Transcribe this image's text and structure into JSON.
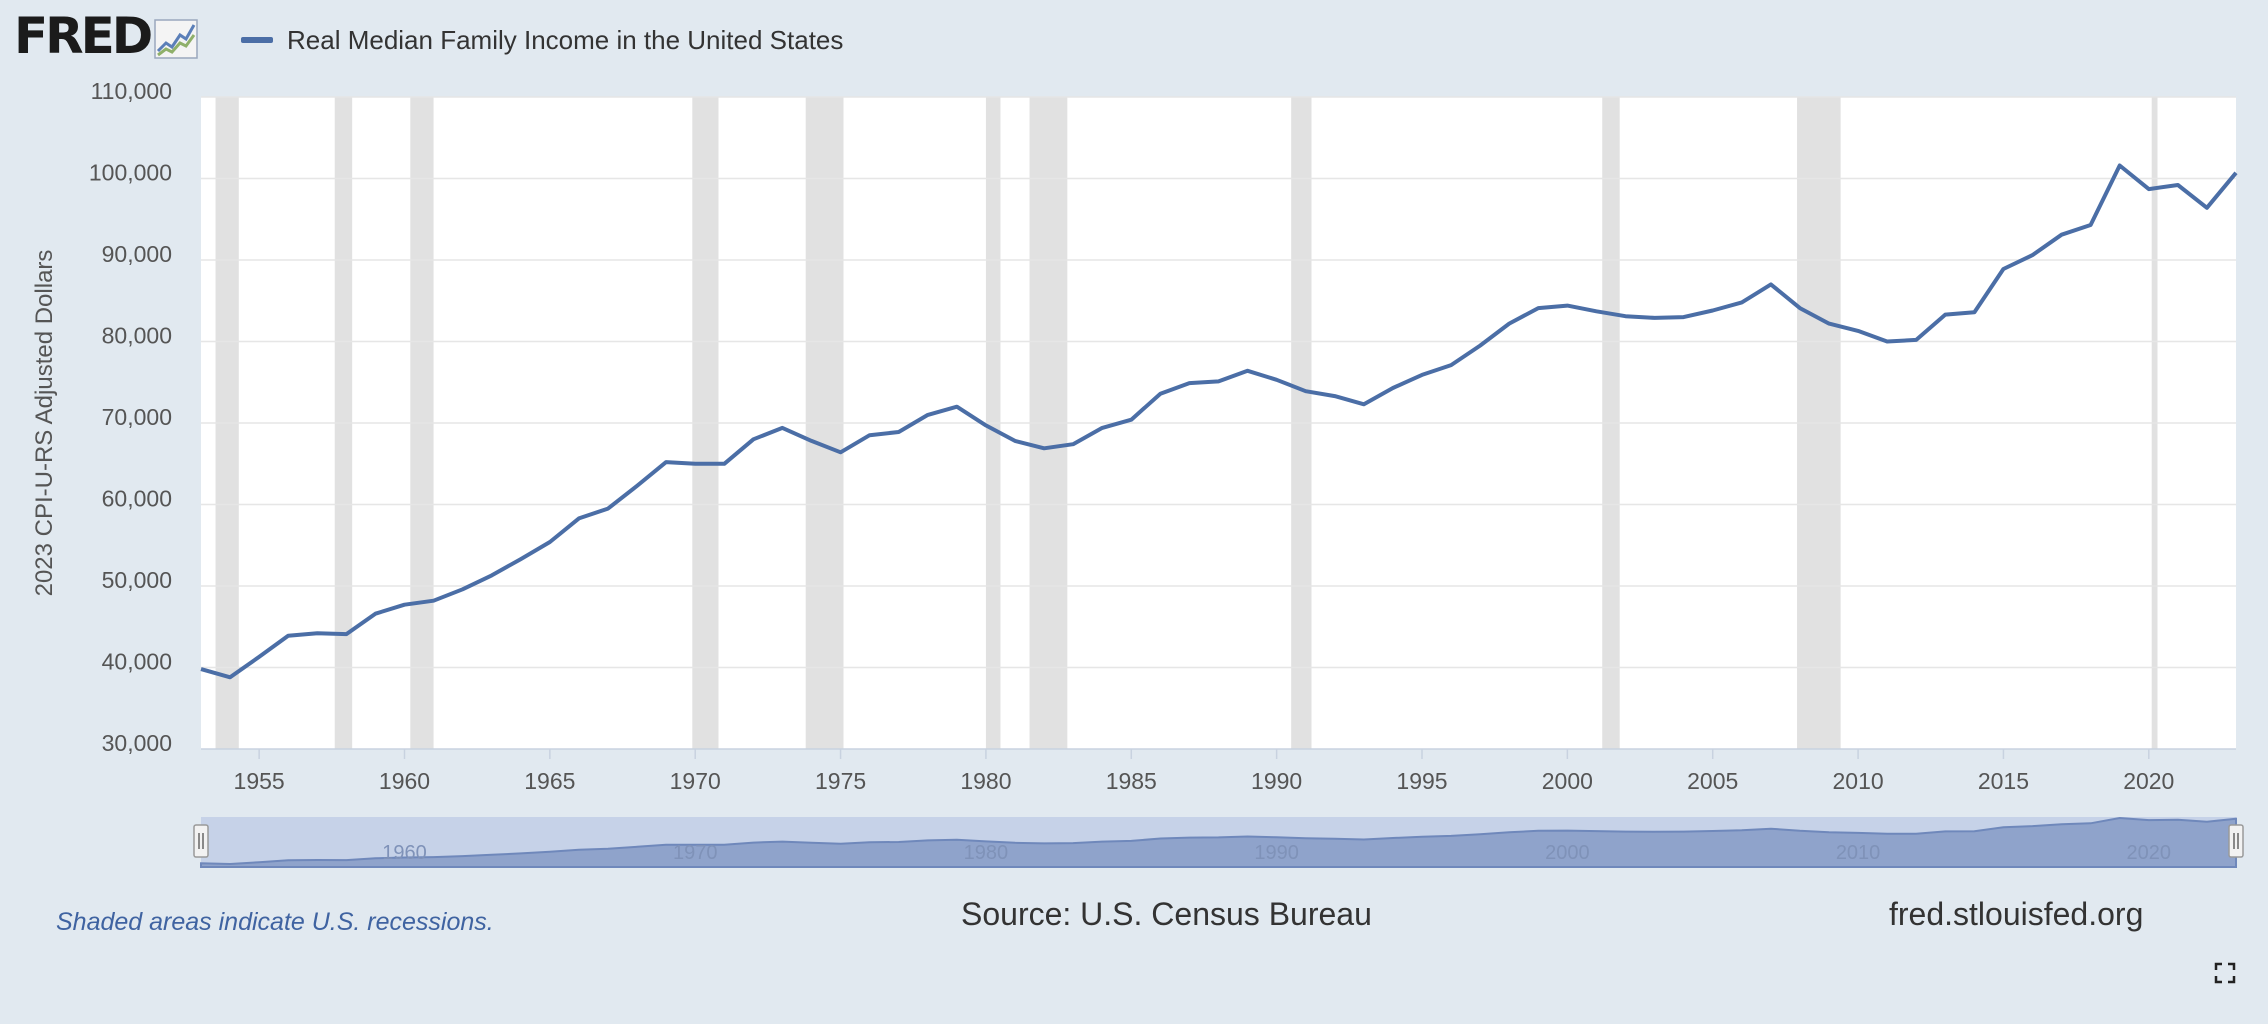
{
  "logo": {
    "text": "FRED",
    "icon": "fred-chart-icon"
  },
  "legend": {
    "label": "Real Median Family Income in the United States",
    "color": "#4b6ea6"
  },
  "footer": {
    "recession_note": "Shaded areas indicate U.S. recessions.",
    "source": "Source: U.S. Census Bureau",
    "site": "fred.stlouisfed.org"
  },
  "fullscreen_icon": "fullscreen-icon",
  "colors": {
    "background": "#e1e9f0",
    "line": "#4b6ea6",
    "recession": "#e1e1e1",
    "plot": "#ffffff"
  },
  "chart_data": {
    "type": "line",
    "title": "",
    "ylabel": "2023 CPI-U-RS Adjusted Dollars",
    "xlabel": "",
    "xlim": [
      1953,
      2023
    ],
    "ylim": [
      30000,
      110000
    ],
    "x_ticks": [
      1955,
      1960,
      1965,
      1970,
      1975,
      1980,
      1985,
      1990,
      1995,
      2000,
      2005,
      2010,
      2015,
      2020
    ],
    "y_ticks": [
      30000,
      40000,
      50000,
      60000,
      70000,
      80000,
      90000,
      100000,
      110000
    ],
    "y_tick_labels": [
      "30,000",
      "40,000",
      "50,000",
      "60,000",
      "70,000",
      "80,000",
      "90,000",
      "100,000",
      "110,000"
    ],
    "grid": true,
    "legend_position": "top-left",
    "recessions": [
      [
        1953.5,
        1954.3
      ],
      [
        1957.6,
        1958.2
      ],
      [
        1960.2,
        1961.0
      ],
      [
        1969.9,
        1970.8
      ],
      [
        1973.8,
        1975.1
      ],
      [
        1980.0,
        1980.5
      ],
      [
        1981.5,
        1982.8
      ],
      [
        1990.5,
        1991.2
      ],
      [
        2001.2,
        2001.8
      ],
      [
        2007.9,
        2009.4
      ],
      [
        2020.1,
        2020.3
      ]
    ],
    "navigator_ticks": [
      1960,
      1970,
      1980,
      1990,
      2000,
      2010,
      2020
    ],
    "series": [
      {
        "name": "Real Median Family Income in the United States",
        "x": [
          1953,
          1954,
          1955,
          1956,
          1957,
          1958,
          1959,
          1960,
          1961,
          1962,
          1963,
          1964,
          1965,
          1966,
          1967,
          1968,
          1969,
          1970,
          1971,
          1972,
          1973,
          1974,
          1975,
          1976,
          1977,
          1978,
          1979,
          1980,
          1981,
          1982,
          1983,
          1984,
          1985,
          1986,
          1987,
          1988,
          1989,
          1990,
          1991,
          1992,
          1993,
          1994,
          1995,
          1996,
          1997,
          1998,
          1999,
          2000,
          2001,
          2002,
          2003,
          2004,
          2005,
          2006,
          2007,
          2008,
          2009,
          2010,
          2011,
          2012,
          2013,
          2014,
          2015,
          2016,
          2017,
          2018,
          2019,
          2020,
          2021,
          2022,
          2023
        ],
        "values": [
          39800,
          38800,
          41300,
          43900,
          44200,
          44100,
          46600,
          47700,
          48200,
          49600,
          51300,
          53300,
          55400,
          58300,
          59500,
          62300,
          65200,
          65000,
          65000,
          68000,
          69400,
          67800,
          66400,
          68500,
          68900,
          71000,
          72000,
          69700,
          67800,
          66900,
          67400,
          69400,
          70400,
          73600,
          74900,
          75100,
          76400,
          75300,
          73900,
          73300,
          72300,
          74300,
          75900,
          77100,
          79500,
          82200,
          84100,
          84400,
          83700,
          83100,
          82900,
          83000,
          83800,
          84800,
          87000,
          84100,
          82200,
          81300,
          80000,
          80200,
          83300,
          83600,
          88900,
          90600,
          93100,
          94300,
          101600,
          98700,
          99200,
          96400,
          100700
        ]
      }
    ]
  }
}
